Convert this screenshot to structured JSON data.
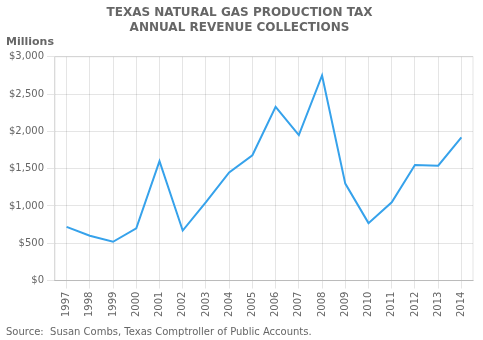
{
  "chart_data": {
    "type": "line",
    "title": "TEXAS NATURAL GAS PRODUCTION TAX\nANNUAL REVENUE COLLECTIONS",
    "ylabel": "Millions",
    "source": "Source:  Susan Combs, Texas Comptroller of Public Accounts.",
    "x": [
      1997,
      1998,
      1999,
      2000,
      2001,
      2002,
      2003,
      2004,
      2005,
      2006,
      2007,
      2008,
      2009,
      2010,
      2011,
      2012,
      2013,
      2014
    ],
    "values": [
      720,
      600,
      520,
      700,
      1600,
      670,
      1050,
      1450,
      1680,
      2330,
      1950,
      2750,
      1300,
      770,
      1050,
      1550,
      1540,
      1920
    ],
    "xlim": [
      1996.5,
      2014.5
    ],
    "xticks": [
      1997,
      1998,
      1999,
      2000,
      2001,
      2002,
      2003,
      2004,
      2005,
      2006,
      2007,
      2008,
      2009,
      2010,
      2011,
      2012,
      2013,
      2014
    ],
    "ylim": [
      0,
      3000
    ],
    "yticks": [
      {
        "value": 0,
        "label": "$0"
      },
      {
        "value": 500,
        "label": "$500"
      },
      {
        "value": 1000,
        "label": "$1,000"
      },
      {
        "value": 1500,
        "label": "$1,500"
      },
      {
        "value": 2000,
        "label": "$2,000"
      },
      {
        "value": 2500,
        "label": "$2,500"
      },
      {
        "value": 3000,
        "label": "$3,000"
      }
    ],
    "grid": true,
    "marker": "none"
  }
}
